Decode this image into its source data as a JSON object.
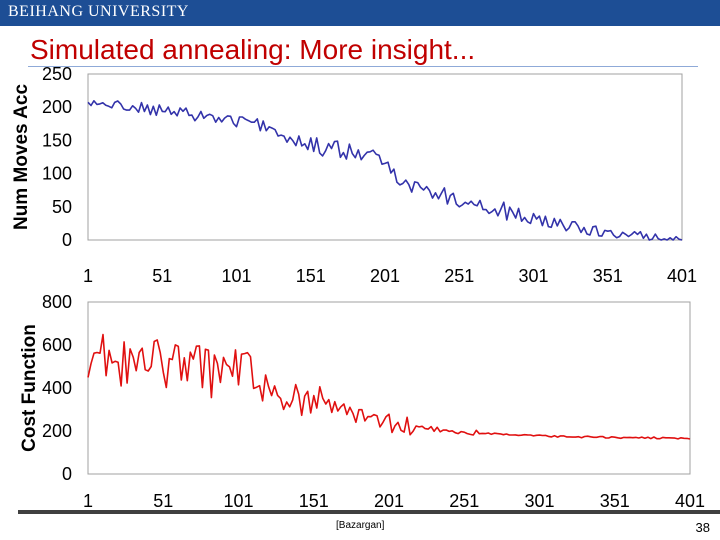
{
  "header": {
    "university": "BEIHANG UNIVERSITY"
  },
  "slide": {
    "title": "Simulated annealing: More insight...",
    "citation": "[Bazargan]",
    "page_number": "38"
  },
  "colors": {
    "header_bar": "#1d4e95",
    "title": "#c00000",
    "series_top": "#3333aa",
    "series_bottom": "#e01010"
  },
  "chart_data": [
    {
      "type": "line",
      "ylabel": "Num Moves Acc",
      "xlabel": "",
      "ylim": [
        0,
        250
      ],
      "xlim": [
        1,
        401
      ],
      "y_ticks": [
        "0",
        "50",
        "100",
        "150",
        "200",
        "250"
      ],
      "x_ticks": [
        "1",
        "51",
        "101",
        "151",
        "201",
        "251",
        "301",
        "351",
        "401"
      ],
      "grid": "none",
      "series": [
        {
          "color": "#3333aa",
          "x": [
            1,
            11,
            21,
            31,
            41,
            51,
            61,
            71,
            81,
            91,
            101,
            111,
            121,
            131,
            141,
            151,
            161,
            171,
            181,
            191,
            201,
            211,
            221,
            231,
            241,
            251,
            261,
            271,
            281,
            291,
            301,
            311,
            321,
            331,
            341,
            351,
            361,
            371,
            381,
            391,
            401
          ],
          "values": [
            203,
            205,
            203,
            201,
            197,
            194,
            191,
            189,
            187,
            182,
            179,
            176,
            171,
            160,
            150,
            142,
            138,
            135,
            130,
            125,
            115,
            95,
            80,
            72,
            67,
            62,
            55,
            50,
            43,
            37,
            32,
            27,
            22,
            18,
            14,
            10,
            8,
            6,
            4,
            3,
            2
          ]
        }
      ]
    },
    {
      "type": "line",
      "ylabel": "Cost Function",
      "xlabel": "",
      "ylim": [
        0,
        800
      ],
      "xlim": [
        1,
        401
      ],
      "y_ticks": [
        "0",
        "200",
        "400",
        "600",
        "800"
      ],
      "x_ticks": [
        "1",
        "51",
        "101",
        "151",
        "201",
        "251",
        "301",
        "351",
        "401"
      ],
      "grid": "none",
      "series": [
        {
          "color": "#e01010",
          "x": [
            1,
            11,
            21,
            31,
            41,
            51,
            61,
            71,
            81,
            91,
            101,
            111,
            121,
            131,
            141,
            151,
            161,
            171,
            181,
            191,
            201,
            211,
            221,
            231,
            241,
            251,
            261,
            271,
            281,
            291,
            301,
            311,
            321,
            331,
            341,
            351,
            361,
            371,
            381,
            391,
            401
          ],
          "values": [
            560,
            540,
            520,
            510,
            500,
            500,
            495,
            490,
            480,
            470,
            460,
            440,
            400,
            380,
            360,
            340,
            310,
            290,
            265,
            245,
            235,
            222,
            212,
            205,
            200,
            196,
            190,
            186,
            183,
            180,
            177,
            175,
            173,
            172,
            171,
            170,
            169,
            168,
            168,
            167,
            166
          ]
        }
      ]
    }
  ]
}
